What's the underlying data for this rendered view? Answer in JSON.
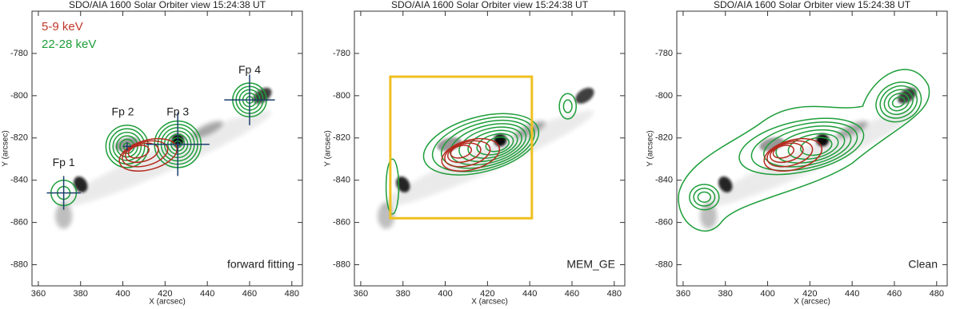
{
  "chart_data": [
    {
      "type": "contour",
      "title": "SDO/AIA 1600 Solar Orbiter view 15:24:38 UT",
      "xlabel": "X (arcsec)",
      "ylabel": "Y (arcsec)",
      "xlim": [
        357,
        485
      ],
      "ylim": [
        -890,
        -760
      ],
      "xticks": [
        360,
        380,
        400,
        420,
        440,
        460,
        480
      ],
      "yticks": [
        -880,
        -860,
        -840,
        -820,
        -800,
        -780
      ],
      "series": [
        {
          "name": "5-9 keV",
          "color": "#c0392b"
        },
        {
          "name": "22-28 keV",
          "color": "#1e9e3a"
        }
      ],
      "annotations": [
        "Fp 1",
        "Fp 2",
        "Fp 3",
        "Fp 4",
        "forward fitting"
      ]
    },
    {
      "type": "contour",
      "title": "SDO/AIA 1600 Solar Orbiter view 15:24:38 UT",
      "xlabel": "X (arcsec)",
      "ylabel": "Y (arcsec)",
      "xlim": [
        357,
        485
      ],
      "ylim": [
        -890,
        -760
      ],
      "xticks": [
        360,
        380,
        400,
        420,
        440,
        460,
        480
      ],
      "yticks": [
        -880,
        -860,
        -840,
        -820,
        -800,
        -780
      ],
      "annotations": [
        "MEM_GE"
      ]
    },
    {
      "type": "contour",
      "title": "SDO/AIA 1600 Solar Orbiter view 15:24:38 UT",
      "xlabel": "X (arcsec)",
      "ylabel": "Y (arcsec)",
      "xlim": [
        357,
        485
      ],
      "ylim": [
        -890,
        -760
      ],
      "xticks": [
        360,
        380,
        400,
        420,
        440,
        460,
        480
      ],
      "yticks": [
        -880,
        -860,
        -840,
        -820,
        -800,
        -780
      ],
      "annotations": [
        "Clean"
      ]
    }
  ]
}
